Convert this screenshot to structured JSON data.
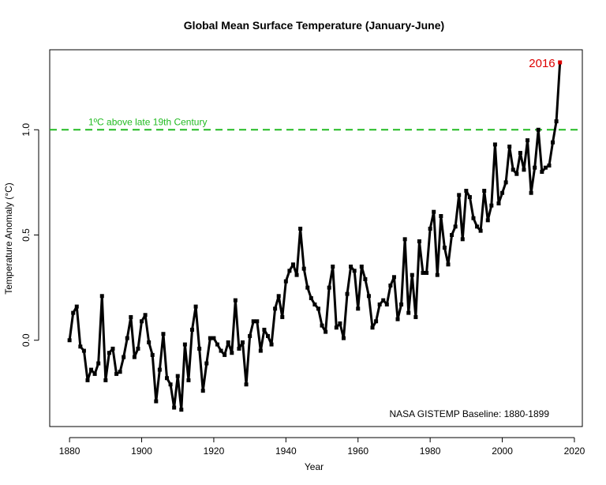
{
  "chart_data": {
    "type": "line",
    "title": "Global Mean Surface Temperature (January-June)",
    "xlabel": "Year",
    "ylabel": "Temperature Anomaly (°C)",
    "xlim": [
      1874.5,
      2022.2
    ],
    "ylim": [
      -0.41,
      1.38
    ],
    "xticks": [
      1880,
      1900,
      1920,
      1940,
      1960,
      1980,
      2000,
      2020
    ],
    "yticks": [
      "0.0",
      "0.5",
      "1.0"
    ],
    "ytick_values": [
      0,
      0.5,
      1.0
    ],
    "grid": false,
    "line_color": "#000000",
    "highlight_color": "#dd0000",
    "reference_line": {
      "y": 1.0,
      "label": "1ºC above late 19th Century",
      "color": "#22bb22",
      "style": "dashed"
    },
    "highlight": {
      "x": 2016,
      "label": "2016"
    },
    "annotation": "NASA GISTEMP Baseline: 1880-1899",
    "x_start": 1880,
    "values": [
      0.0,
      0.13,
      0.16,
      -0.03,
      -0.05,
      -0.19,
      -0.14,
      -0.16,
      -0.11,
      0.21,
      -0.19,
      -0.06,
      -0.04,
      -0.16,
      -0.15,
      -0.08,
      0.01,
      0.11,
      -0.08,
      -0.04,
      0.09,
      0.12,
      -0.01,
      -0.07,
      -0.29,
      -0.14,
      0.03,
      -0.18,
      -0.21,
      -0.32,
      -0.17,
      -0.33,
      -0.02,
      -0.19,
      0.05,
      0.16,
      -0.04,
      -0.24,
      -0.11,
      0.01,
      0.01,
      -0.02,
      -0.05,
      -0.07,
      -0.01,
      -0.06,
      0.19,
      -0.04,
      -0.01,
      -0.21,
      0.02,
      0.09,
      0.09,
      -0.05,
      0.05,
      0.02,
      -0.02,
      0.15,
      0.21,
      0.11,
      0.28,
      0.33,
      0.36,
      0.31,
      0.53,
      0.34,
      0.25,
      0.2,
      0.17,
      0.15,
      0.07,
      0.04,
      0.25,
      0.35,
      0.06,
      0.08,
      0.01,
      0.22,
      0.35,
      0.33,
      0.15,
      0.35,
      0.29,
      0.21,
      0.06,
      0.09,
      0.17,
      0.19,
      0.17,
      0.26,
      0.3,
      0.1,
      0.17,
      0.48,
      0.13,
      0.31,
      0.11,
      0.47,
      0.32,
      0.32,
      0.53,
      0.61,
      0.31,
      0.59,
      0.44,
      0.36,
      0.5,
      0.54,
      0.69,
      0.48,
      0.71,
      0.68,
      0.58,
      0.54,
      0.52,
      0.71,
      0.57,
      0.64,
      0.93,
      0.65,
      0.7,
      0.75,
      0.92,
      0.81,
      0.79,
      0.89,
      0.81,
      0.95,
      0.7,
      0.82,
      1.0,
      0.8,
      0.82,
      0.83,
      0.94,
      1.04,
      1.32
    ]
  }
}
